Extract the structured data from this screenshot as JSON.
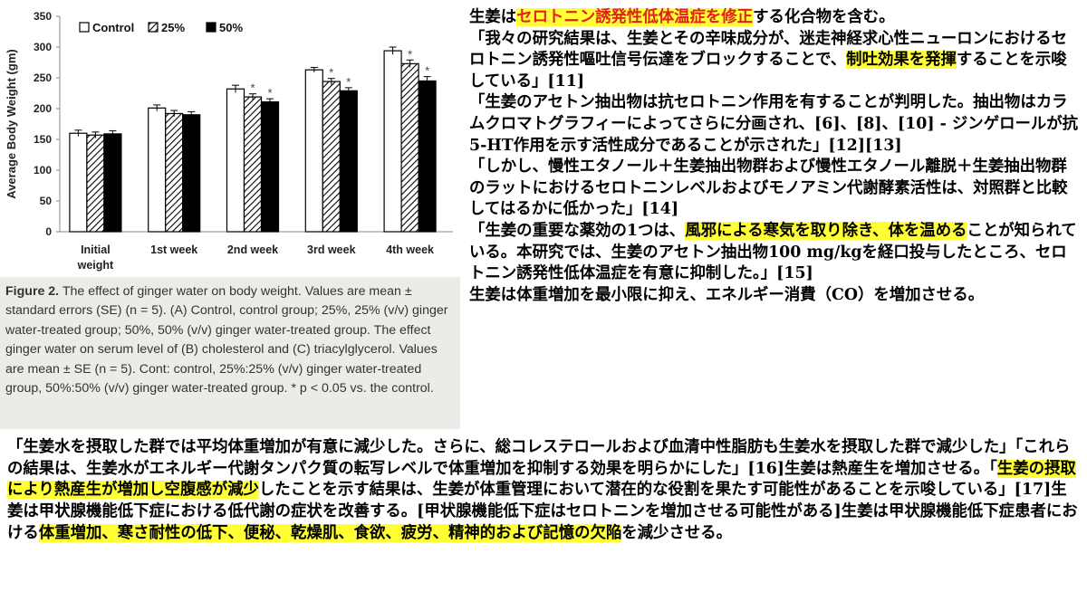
{
  "figure": {
    "chart_data": {
      "type": "bar",
      "categories": [
        "Initial weight",
        "1st week",
        "2nd week",
        "3rd week",
        "4th week"
      ],
      "series": [
        {
          "name": "Control",
          "values": [
            160,
            201,
            232,
            263,
            294
          ],
          "errors": [
            5,
            5,
            6,
            4,
            6
          ],
          "pattern": "white"
        },
        {
          "name": "25%",
          "values": [
            157,
            192,
            219,
            244,
            273
          ],
          "errors": [
            5,
            5,
            5,
            5,
            6
          ],
          "pattern": "hatched"
        },
        {
          "name": "50%",
          "values": [
            159,
            190,
            211,
            229,
            245
          ],
          "errors": [
            5,
            5,
            5,
            5,
            7
          ],
          "pattern": "black"
        }
      ],
      "significance": [
        [
          false,
          false,
          false
        ],
        [
          false,
          false,
          false
        ],
        [
          false,
          true,
          true
        ],
        [
          false,
          true,
          true
        ],
        [
          false,
          true,
          true
        ]
      ],
      "significance_mark": "*",
      "ylabel": "Average Body Weight (gm)",
      "ylim": [
        0,
        350
      ],
      "yticks": [
        0,
        50,
        100,
        150,
        200,
        250,
        300,
        350
      ],
      "legend_position": "top-left",
      "grid": false
    },
    "caption": {
      "label": "Figure 2.",
      "text": " The effect of ginger water on body weight. Values are mean ± standard errors (SE) (n = 5). (A) Control, control group; 25%, 25% (v/v) ginger water-treated group; 50%, 50% (v/v) ginger water-treated group. The effect ginger water on serum level of (B) cholesterol and (C) triacylglycerol. Values are mean ± SE (n = 5). Cont: control, 25%:25% (v/v) ginger water-treated group, 50%:50% (v/v) ginger water-treated group. * p < 0.05 vs. the control."
    }
  },
  "right_text": {
    "p1": [
      "生姜は",
      "セロトニン誘発性低体温症を修正",
      "する化合物を含む。"
    ],
    "p2": [
      "「我々の研究結果は、生姜とその辛味成分が、迷走神経求心性ニューロンにおけるセロトニン誘発性嘔吐信号伝達をブロックすることで、",
      "制吐効果を発揮",
      "することを示唆している」[11]"
    ],
    "p3": "「生姜のアセトン抽出物は抗セロトニン作用を有することが判明した。抽出物はカラムクロマトグラフィーによってさらに分画され、[6]、[8]、[10] - ジンゲロールが抗5-HT作用を示す活性成分であることが示された」[12][13]",
    "p4": "「しかし、慢性エタノール＋生姜抽出物群および慢性エタノール離脱＋生姜抽出物群のラットにおけるセロトニンレベルおよびモノアミン代謝酵素活性は、対照群と比較してはるかに低かった」[14]",
    "p5": [
      "「生姜の重要な薬効の1つは、",
      "風邪による寒気を取り除き、体を温める",
      "ことが知られている。本研究では、生姜のアセトン抽出物100 mg/kgを経口投与したところ、セロトニン誘発性低体温症を有意に抑制した。」[15]"
    ],
    "p6": "生姜は体重増加を最小限に抑え、エネルギー消費（CO）を増加させる。"
  },
  "bottom_text": [
    "「生姜水を摂取した群では平均体重増加が有意に減少した。さらに、総コレステロールおよび血清中性脂肪も生姜水を摂取した群で減少した」「これらの結果は、生姜水がエネルギー代謝タンパク質の転写レベルで体重増加を抑制する効果を明らかにした」[16]生姜は熱産生を増加させる。「",
    "生姜の摂取により熱産生が増加し空腹感が減少",
    "したことを示す結果は、生姜が体重管理において潜在的な役割を果たす可能性があることを示唆している」[17]生姜は甲状腺機能低下症における低代謝の症状を改善する。[甲状腺機能低下症はセロトニンを増加させる可能性がある]生姜は甲状腺機能低下症患者における",
    "体重増加、寒さ耐性の低下、便秘、乾燥肌、食欲、疲労、精神的および記憶の欠陥",
    "を減少させる。"
  ],
  "colors": {
    "highlight": "#ffff33",
    "highlight_text_red": "#e0201b",
    "caption_bg": "#ecebe7",
    "bar_black": "#000000"
  }
}
